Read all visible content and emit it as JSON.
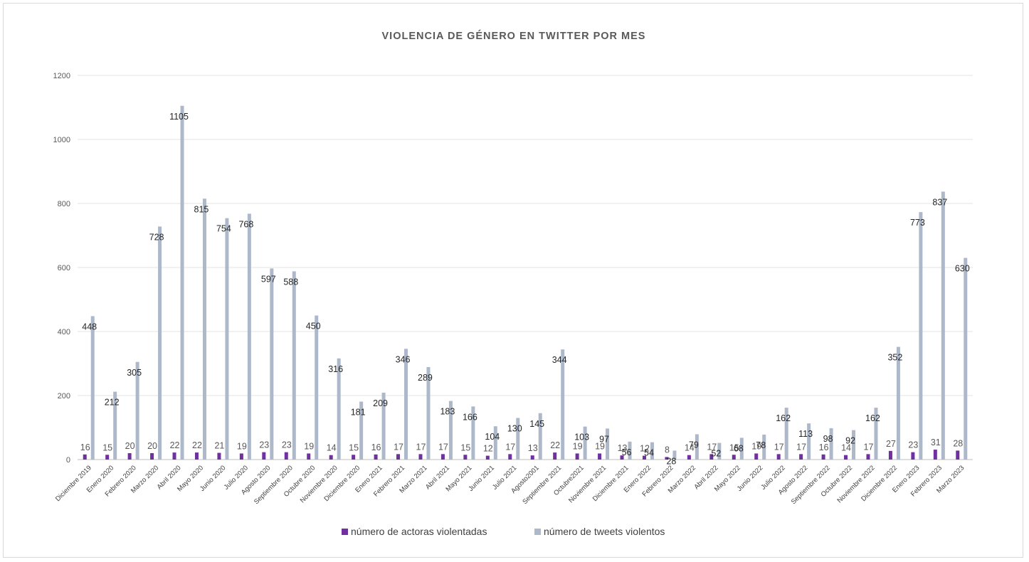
{
  "chart_data": {
    "type": "bar",
    "title": "VIOLENCIA DE GÉNERO EN TWITTER POR MES",
    "xlabel": "",
    "ylabel": "",
    "ylim": [
      0,
      1200
    ],
    "yticks": [
      0,
      200,
      400,
      600,
      800,
      1000,
      1200
    ],
    "grid": true,
    "legend_position": "bottom",
    "categories": [
      "Diciembre 2019",
      "Enero 2020",
      "Febrero 2020",
      "Marzo 2020",
      "Abril 2020",
      "Mayo 2020",
      "Junio 2020",
      "Julio 2020",
      "Agosto 2020",
      "Septiembre 2020",
      "Octubre 2020",
      "Noviembre 2020",
      "Diciembre 2020",
      "Enero 2021",
      "Febrero 2021",
      "Marzo 2021",
      "Abril 2021",
      "Mayo 2021",
      "Junio 2021",
      "Julio 2021",
      "Agosto2001",
      "Septiembre 2021",
      "Octubre2021",
      "Noviembre 2021",
      "Diciembre 2021",
      "Enero 2022",
      "Febrero 2022",
      "Marzo 2022",
      "Abril 2022",
      "Mayo 2022",
      "Junio 2022",
      "Julio 2022",
      "Agosto 2022",
      "Septiembre 2022",
      "Octubre 2022",
      "Noviembre 2022",
      "Diciembre 2022",
      "Enero 2023",
      "Febrero 2023",
      "Marzo 2023"
    ],
    "series": [
      {
        "name": "número de actoras violentadas",
        "color": "#7030a0",
        "values": [
          16,
          15,
          20,
          20,
          22,
          22,
          21,
          19,
          23,
          23,
          19,
          14,
          15,
          16,
          17,
          17,
          17,
          15,
          12,
          17,
          13,
          22,
          19,
          19,
          13,
          12,
          8,
          14,
          17,
          15,
          19,
          17,
          17,
          16,
          14,
          17,
          27,
          23,
          31,
          28
        ]
      },
      {
        "name": "número de tweets violentos",
        "color": "#adb9ca",
        "values": [
          448,
          212,
          305,
          728,
          1105,
          815,
          754,
          768,
          597,
          588,
          450,
          316,
          181,
          209,
          346,
          289,
          183,
          166,
          104,
          130,
          145,
          344,
          103,
          97,
          56,
          54,
          28,
          79,
          52,
          68,
          78,
          162,
          113,
          98,
          92,
          162,
          352,
          773,
          837,
          630
        ]
      }
    ]
  }
}
